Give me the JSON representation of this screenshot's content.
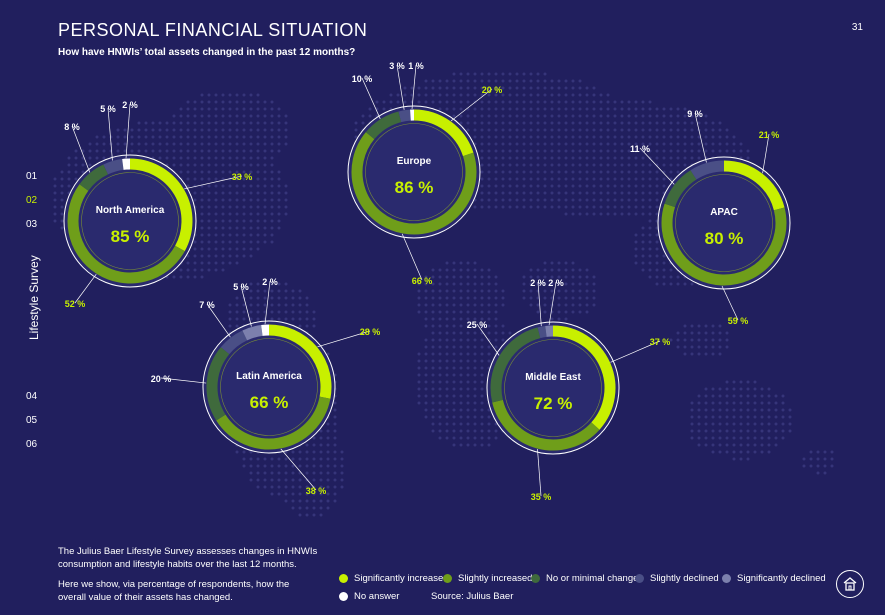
{
  "header": {
    "title": "PERSONAL FINANCIAL SITUATION",
    "subtitle": "How have HNWIs’ total assets changed in the past 12 months?",
    "page_number": "31"
  },
  "side_nav": {
    "items": [
      "01",
      "02",
      "03",
      "04",
      "05",
      "06"
    ],
    "active_index": 1,
    "vertical_label": "Lifestyle Survey"
  },
  "footer": {
    "description": "The Julius Baer Lifestyle Survey assesses changes in HNWIs consumption and lifestyle habits over the last 12 months.",
    "explanation": "Here we show, via percentage of respondents, how the overall value of their assets has changed.",
    "source": "Source: Julius Baer"
  },
  "legend": [
    {
      "label": "Significantly increased",
      "color": "#c8f000"
    },
    {
      "label": "Slightly increased",
      "color": "#6f9e1a"
    },
    {
      "label": "No or minimal change",
      "color": "#3f6a3c"
    },
    {
      "label": "Slightly declined",
      "color": "#4a4f86"
    },
    {
      "label": "Significantly declined",
      "color": "#7c80ad"
    },
    {
      "label": "No answer",
      "color": "#ffffff"
    }
  ],
  "chart_data": [
    {
      "type": "pie",
      "region": "North America",
      "total_label": "85 %",
      "categories": [
        "Significantly increased",
        "Slightly increased",
        "No or minimal change",
        "Slightly declined",
        "Significantly declined",
        "No answer"
      ],
      "values": [
        33,
        52,
        8,
        5,
        0,
        2
      ],
      "labels": [
        "33 %",
        "52 %",
        "8 %",
        "5 %",
        "",
        "2 %"
      ]
    },
    {
      "type": "pie",
      "region": "Europe",
      "total_label": "86 %",
      "categories": [
        "Significantly increased",
        "Slightly increased",
        "No or minimal change",
        "Slightly declined",
        "Significantly declined",
        "No answer"
      ],
      "values": [
        20,
        66,
        10,
        3,
        0,
        1
      ],
      "labels": [
        "20 %",
        "66 %",
        "10 %",
        "3 %",
        "",
        "1 %"
      ]
    },
    {
      "type": "pie",
      "region": "APAC",
      "total_label": "80 %",
      "categories": [
        "Significantly increased",
        "Slightly increased",
        "No or minimal change",
        "Slightly declined",
        "Significantly declined",
        "No answer"
      ],
      "values": [
        21,
        59,
        11,
        9,
        0,
        0
      ],
      "labels": [
        "21 %",
        "59 %",
        "11 %",
        "9 %",
        "",
        ""
      ]
    },
    {
      "type": "pie",
      "region": "Latin America",
      "total_label": "66 %",
      "categories": [
        "Significantly increased",
        "Slightly increased",
        "No or minimal change",
        "Slightly declined",
        "Significantly declined",
        "No answer"
      ],
      "values": [
        28,
        38,
        20,
        7,
        5,
        2
      ],
      "labels": [
        "28 %",
        "38 %",
        "20 %",
        "7 %",
        "5 %",
        "2 %"
      ]
    },
    {
      "type": "pie",
      "region": "Middle East",
      "total_label": "72 %",
      "categories": [
        "Significantly increased",
        "Slightly increased",
        "No or minimal change",
        "Slightly declined",
        "Significantly declined",
        "No answer"
      ],
      "values": [
        37,
        35,
        25,
        2,
        2,
        0
      ],
      "labels": [
        "37 %",
        "35 %",
        "25 %",
        "2 %",
        "2 %",
        ""
      ]
    }
  ]
}
